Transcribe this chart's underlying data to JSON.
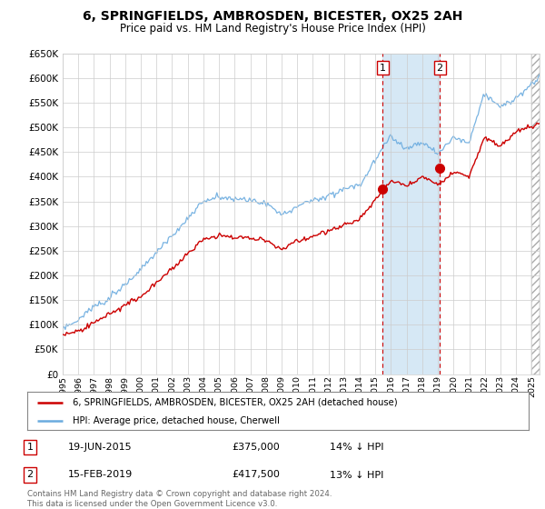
{
  "title1": "6, SPRINGFIELDS, AMBROSDEN, BICESTER, OX25 2AH",
  "title2": "Price paid vs. HM Land Registry's House Price Index (HPI)",
  "legend_line1": "6, SPRINGFIELDS, AMBROSDEN, BICESTER, OX25 2AH (detached house)",
  "legend_line2": "HPI: Average price, detached house, Cherwell",
  "transaction1": {
    "label": "1",
    "date": "19-JUN-2015",
    "price": "£375,000",
    "hpi": "14% ↓ HPI"
  },
  "transaction2": {
    "label": "2",
    "date": "15-FEB-2019",
    "price": "£417,500",
    "hpi": "13% ↓ HPI"
  },
  "footer": "Contains HM Land Registry data © Crown copyright and database right 2024.\nThis data is licensed under the Open Government Licence v3.0.",
  "hpi_color": "#6aabdf",
  "price_color": "#cc0000",
  "vline_color": "#cc0000",
  "span_color": "#d6e8f5",
  "marker1_x": 2015.47,
  "marker2_x": 2019.12,
  "marker1_price": 375000,
  "marker2_price": 417500,
  "ylim_min": 0,
  "ylim_max": 650000,
  "ytick_step": 50000,
  "xmin": 1995.0,
  "xmax": 2025.5,
  "right_hatch_start": 2025.0
}
